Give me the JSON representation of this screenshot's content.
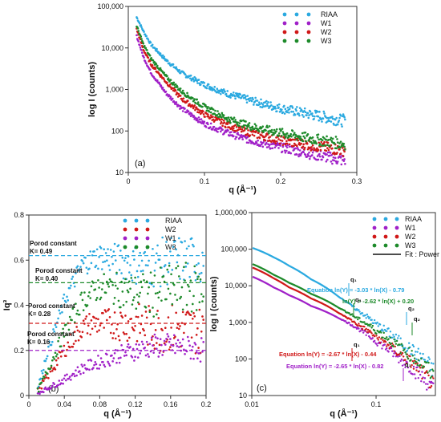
{
  "colors": {
    "RIAA": "#2aa9e0",
    "W1": "#a020c8",
    "W2": "#d01818",
    "W3": "#1d8a2a"
  },
  "chart_data": [
    {
      "panel": "(a)",
      "type": "scatter",
      "xlabel": "q (Å⁻¹)",
      "ylabel": "log I (counts)",
      "xscale": "linear",
      "yscale": "log",
      "xlim": [
        0,
        0.3
      ],
      "ylim": [
        10,
        100000
      ],
      "xticks": [
        "0",
        "0.1",
        "0.2",
        "0.3"
      ],
      "yticks": [
        "10",
        "100",
        "1,000",
        "10,000",
        "100,000"
      ],
      "legend_position": "top-right",
      "series": [
        {
          "name": "RIAA",
          "x": [
            0.01,
            0.02,
            0.03,
            0.05,
            0.07,
            0.1,
            0.13,
            0.16,
            0.2,
            0.24,
            0.28
          ],
          "y": [
            60000,
            25000,
            12000,
            5000,
            2500,
            1300,
            800,
            550,
            350,
            250,
            180
          ]
        },
        {
          "name": "W1",
          "x": [
            0.01,
            0.02,
            0.03,
            0.05,
            0.07,
            0.1,
            0.13,
            0.16,
            0.2,
            0.24,
            0.28
          ],
          "y": [
            22000,
            6000,
            2500,
            800,
            350,
            150,
            90,
            60,
            40,
            28,
            20
          ]
        },
        {
          "name": "W2",
          "x": [
            0.01,
            0.02,
            0.03,
            0.05,
            0.07,
            0.1,
            0.13,
            0.16,
            0.2,
            0.24,
            0.28
          ],
          "y": [
            32000,
            9000,
            4000,
            1500,
            600,
            250,
            140,
            90,
            60,
            45,
            35
          ]
        },
        {
          "name": "W3",
          "x": [
            0.01,
            0.02,
            0.03,
            0.05,
            0.07,
            0.1,
            0.13,
            0.16,
            0.2,
            0.24,
            0.28
          ],
          "y": [
            38000,
            12000,
            5500,
            2000,
            900,
            380,
            200,
            130,
            90,
            65,
            50
          ]
        }
      ]
    },
    {
      "panel": "(b)",
      "type": "scatter",
      "xlabel": "q (Å⁻¹)",
      "ylabel": "Iq³",
      "xlim": [
        0,
        0.2
      ],
      "ylim": [
        0,
        0.8
      ],
      "xticks": [
        "0",
        "0.04",
        "0.08",
        "0.12",
        "0.16",
        "0.2"
      ],
      "yticks": [
        "0",
        "0.2",
        "0.4",
        "0.6",
        "0.8"
      ],
      "legend_position": "top-right",
      "series": [
        {
          "name": "RIAA",
          "x": [
            0.01,
            0.02,
            0.04,
            0.06,
            0.08,
            0.1,
            0.12,
            0.14,
            0.16,
            0.18,
            0.2
          ],
          "y": [
            0.03,
            0.18,
            0.42,
            0.58,
            0.62,
            0.6,
            0.58,
            0.58,
            0.6,
            0.6,
            0.6
          ]
        },
        {
          "name": "W2",
          "x": [
            0.01,
            0.02,
            0.04,
            0.06,
            0.07,
            0.1,
            0.12,
            0.14,
            0.16,
            0.18,
            0.2
          ],
          "y": [
            0.02,
            0.08,
            0.2,
            0.3,
            0.32,
            0.32,
            0.32,
            0.3,
            0.3,
            0.3,
            0.28
          ]
        },
        {
          "name": "W1",
          "x": [
            0.01,
            0.02,
            0.04,
            0.06,
            0.08,
            0.1,
            0.12,
            0.14,
            0.16,
            0.18,
            0.2
          ],
          "y": [
            0.01,
            0.03,
            0.07,
            0.12,
            0.15,
            0.18,
            0.2,
            0.22,
            0.22,
            0.21,
            0.2
          ]
        },
        {
          "name": "W3",
          "x": [
            0.01,
            0.02,
            0.04,
            0.06,
            0.08,
            0.1,
            0.12,
            0.14,
            0.16,
            0.18,
            0.2
          ],
          "y": [
            0.02,
            0.1,
            0.28,
            0.42,
            0.48,
            0.47,
            0.45,
            0.45,
            0.47,
            0.48,
            0.46
          ]
        }
      ],
      "reference_lines": [
        {
          "series": "RIAA",
          "y": 0.62
        },
        {
          "series": "W3",
          "y": 0.5
        },
        {
          "series": "W2",
          "y": 0.32
        },
        {
          "series": "W1",
          "y": 0.2
        }
      ],
      "annotations": [
        {
          "line1": "Porod constant",
          "line2": "K= 0.49"
        },
        {
          "line1": "Porod constant",
          "line2": "K= 0.40"
        },
        {
          "line1": "Porod constant",
          "line2": "K= 0.28"
        },
        {
          "line1": "Porod constant",
          "line2": "K= 0.16"
        }
      ]
    },
    {
      "panel": "(c)",
      "type": "scatter",
      "xlabel": "q (Å⁻¹)",
      "ylabel": "log I (counts)",
      "xscale": "log",
      "yscale": "log",
      "xlim": [
        0.01,
        0.3
      ],
      "ylim": [
        10,
        1000000
      ],
      "xticks": [
        "0.01",
        "0.1"
      ],
      "yticks": [
        "10",
        "100",
        "1,000",
        "10,000",
        "100,000",
        "1,000,000"
      ],
      "legend_position": "top-right",
      "series": [
        {
          "name": "RIAA",
          "x": [
            0.01,
            0.015,
            0.02,
            0.03,
            0.05,
            0.07,
            0.1,
            0.15,
            0.2,
            0.25,
            0.3
          ],
          "y": [
            110000,
            60000,
            35000,
            15000,
            5000,
            2200,
            900,
            320,
            160,
            90,
            40
          ]
        },
        {
          "name": "W1",
          "x": [
            0.01,
            0.015,
            0.02,
            0.03,
            0.05,
            0.07,
            0.1,
            0.15,
            0.2,
            0.25,
            0.3
          ],
          "y": [
            18000,
            9000,
            5500,
            2800,
            1300,
            700,
            300,
            110,
            50,
            25,
            12
          ]
        },
        {
          "name": "W2",
          "x": [
            0.01,
            0.015,
            0.02,
            0.03,
            0.05,
            0.07,
            0.1,
            0.15,
            0.2,
            0.25,
            0.3
          ],
          "y": [
            32000,
            16000,
            9000,
            4500,
            1800,
            900,
            400,
            150,
            70,
            35,
            15
          ]
        },
        {
          "name": "W3",
          "x": [
            0.01,
            0.015,
            0.02,
            0.03,
            0.05,
            0.07,
            0.1,
            0.15,
            0.2,
            0.25,
            0.3
          ],
          "y": [
            40000,
            20000,
            12000,
            6000,
            2500,
            1300,
            600,
            220,
            110,
            60,
            30
          ]
        }
      ],
      "fit_legend": "Fit : Power",
      "equations": [
        {
          "series": "RIAA",
          "text": "Equation ln(Y) = -3.03 * ln(X) - 0.79"
        },
        {
          "series": "W3",
          "text": "ln(Y) = -2.62 * ln(X) + 0.20"
        },
        {
          "series": "W2",
          "text": "Equation ln(Y) = -2.67 * ln(X) - 0.44"
        },
        {
          "series": "W1",
          "text": "Equation ln(Y) = -2.65 * ln(X) - 0.82"
        }
      ],
      "markers": [
        "q₁",
        "q₁",
        "q₁",
        "q₂",
        "q₂",
        "q₁"
      ]
    }
  ]
}
